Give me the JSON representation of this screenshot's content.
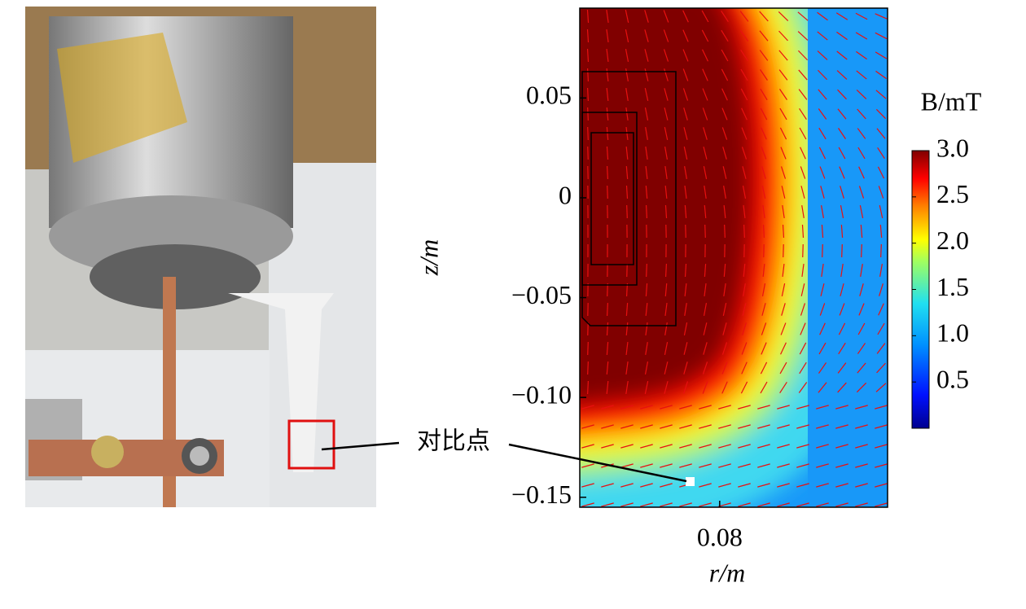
{
  "chart_data": {
    "type": "heatmap",
    "annotation": "对比点",
    "xlabel": "r/m",
    "ylabel": "z/m",
    "colorbar_label": "B/mT",
    "xlim": [
      0.07,
      0.092
    ],
    "xticks": [
      0.08
    ],
    "ylim": [
      -0.155,
      0.095
    ],
    "yticks": [
      0.05,
      0,
      {
        "value": -0.05,
        "label": "−0.05"
      },
      {
        "value": -0.1,
        "label": "−0.10"
      },
      {
        "value": -0.15,
        "label": "−0.15"
      }
    ],
    "clim": [
      0,
      3
    ],
    "cticks": [
      {
        "value": 3,
        "label": "3.0"
      },
      2.5,
      {
        "value": 2,
        "label": "2.0"
      },
      1.5,
      {
        "value": 1,
        "label": "1.0"
      },
      0.5
    ]
  }
}
